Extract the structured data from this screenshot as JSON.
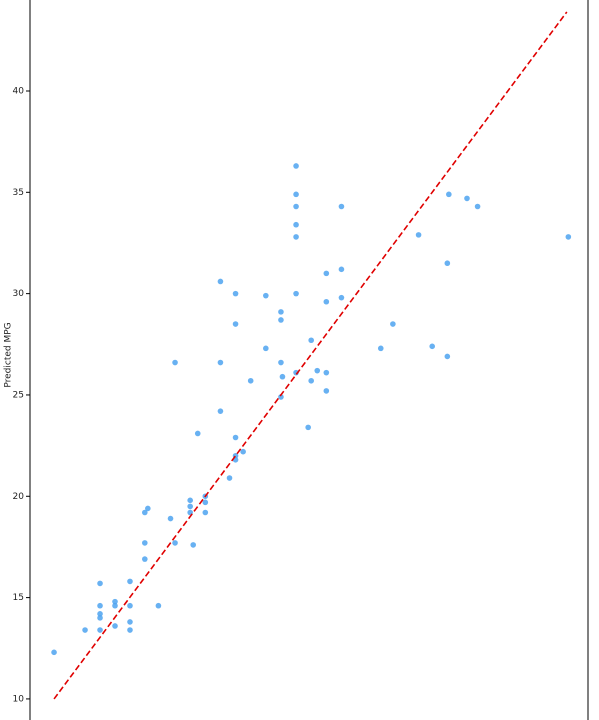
{
  "chart_data": {
    "type": "scatter",
    "y_label": "Predicted MPG",
    "xlim": [
      8.41,
      45.3
    ],
    "ylim": [
      8.96,
      44.49
    ],
    "yticks": [
      10,
      15,
      20,
      25,
      30,
      35,
      40
    ],
    "series": [
      {
        "color": "#4da3f0",
        "x": [
          10.0,
          12.05,
          13.04,
          13.04,
          13.04,
          13.04,
          13.04,
          14.03,
          14.03,
          14.03,
          15.02,
          15.02,
          15.02,
          15.02,
          16.0,
          16.2,
          16.0,
          16.0,
          16.9,
          17.7,
          18.0,
          18.0,
          19.0,
          19.0,
          19.0,
          19.2,
          19.5,
          20.0,
          20.0,
          20.0,
          21.0,
          21.0,
          21.0,
          21.6,
          22.0,
          22.0,
          22.0,
          22.0,
          22.0,
          22.5,
          23.0,
          24.0,
          24.0,
          25.0,
          25.0,
          25.0,
          25.1,
          25.0,
          26.0,
          26.0,
          26.0,
          26.0,
          26.0,
          26.0,
          26.0,
          26.8,
          27.0,
          27.0,
          27.4,
          28.0,
          28.0,
          28.0,
          28.0,
          29.0,
          29.0,
          29.0,
          31.6,
          32.4,
          34.1,
          35.0,
          36.0,
          36.0,
          36.1,
          37.3,
          38.0,
          44.0
        ],
        "y": [
          12.3,
          13.4,
          15.7,
          14.6,
          14.2,
          14.0,
          13.4,
          14.8,
          14.6,
          13.6,
          15.8,
          14.6,
          13.8,
          13.4,
          19.2,
          19.4,
          17.7,
          16.9,
          14.6,
          18.9,
          17.7,
          26.6,
          19.8,
          19.5,
          19.2,
          17.6,
          23.1,
          20.0,
          19.7,
          19.2,
          30.6,
          26.6,
          24.2,
          20.9,
          30.0,
          28.5,
          22.9,
          22.0,
          21.8,
          22.2,
          25.7,
          29.9,
          27.3,
          29.1,
          28.7,
          26.6,
          25.9,
          24.9,
          36.3,
          34.9,
          34.3,
          33.4,
          32.8,
          30.0,
          26.1,
          23.4,
          27.7,
          25.7,
          26.2,
          31.0,
          29.6,
          26.1,
          25.2,
          34.3,
          31.2,
          29.8,
          27.3,
          28.5,
          32.9,
          27.4,
          31.5,
          26.9,
          34.9,
          34.7,
          34.3,
          32.8
        ]
      }
    ],
    "reference_line": {
      "x": [
        10,
        43.9
      ],
      "y": [
        10,
        43.9
      ],
      "color": "#e00000",
      "dashed": true
    }
  }
}
